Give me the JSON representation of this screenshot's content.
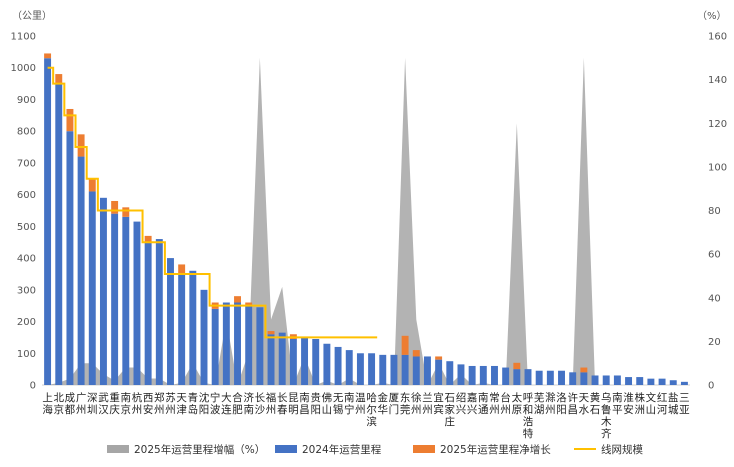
{
  "chart_data": {
    "type": "bar",
    "left_axis_unit": "（公里）",
    "right_axis_unit": "（%）",
    "ylim": [
      0,
      1100
    ],
    "y2lim": [
      0,
      160
    ],
    "yticks": [
      0,
      100,
      200,
      300,
      400,
      500,
      600,
      700,
      800,
      900,
      1000,
      1100
    ],
    "y2ticks": [
      0,
      20,
      40,
      60,
      80,
      100,
      120,
      140,
      160
    ],
    "grid": false,
    "legend_position": "bottom",
    "categories": [
      "上海",
      "北京",
      "成都",
      "广州",
      "深圳",
      "武汉",
      "重庆",
      "南京",
      "杭州",
      "西安",
      "郑州",
      "苏州",
      "天津",
      "青岛",
      "沈阳",
      "宁波",
      "大连",
      "合肥",
      "济南",
      "长沙",
      "福州",
      "长春",
      "昆明",
      "南昌",
      "贵阳",
      "佛山",
      "无锡",
      "南宁",
      "温州",
      "哈尔滨",
      "金华",
      "厦门",
      "东莞",
      "徐州",
      "兰州",
      "宜宾",
      "石家庄",
      "绍兴",
      "嘉兴",
      "南通",
      "常州",
      "台州",
      "太原",
      "呼和浩特",
      "芜湖",
      "滁州",
      "洛阳",
      "许昌",
      "天水",
      "黄石",
      "乌鲁木齐",
      "南平",
      "淮安",
      "株洲",
      "文山",
      "红河",
      "盐城",
      "三亚"
    ],
    "series": [
      {
        "name": "2025年运营里程增幅（%）",
        "kind": "area",
        "axis": "right",
        "color": "#a6a6a6",
        "values": [
          0,
          1,
          3,
          10,
          10,
          5,
          2,
          8,
          8,
          3,
          3,
          0,
          1,
          10,
          1,
          0,
          30,
          0,
          15,
          150,
          30,
          45,
          0,
          13,
          0,
          2,
          0,
          3,
          0,
          0,
          1,
          0,
          150,
          30,
          0,
          10,
          0,
          5,
          0,
          1,
          0,
          0,
          120,
          0,
          0,
          0,
          0,
          0,
          150,
          0,
          0,
          0,
          0,
          0,
          0,
          0,
          0,
          0
        ]
      },
      {
        "name": "2024年运营里程",
        "kind": "bar",
        "axis": "left",
        "color": "#4472c4",
        "values": [
          1030,
          950,
          800,
          720,
          610,
          590,
          540,
          530,
          515,
          450,
          460,
          400,
          350,
          360,
          300,
          240,
          260,
          260,
          250,
          245,
          160,
          165,
          145,
          150,
          145,
          130,
          120,
          110,
          100,
          100,
          95,
          95,
          95,
          90,
          90,
          80,
          75,
          65,
          60,
          60,
          60,
          55,
          50,
          50,
          45,
          45,
          45,
          40,
          40,
          30,
          30,
          30,
          25,
          25,
          20,
          20,
          15,
          10
        ]
      },
      {
        "name": "2025年运营里程净增长",
        "kind": "bar",
        "axis": "left",
        "color": "#ed7d31",
        "values": [
          15,
          30,
          70,
          70,
          40,
          0,
          40,
          30,
          0,
          20,
          0,
          0,
          30,
          0,
          0,
          20,
          0,
          20,
          10,
          0,
          10,
          0,
          15,
          0,
          0,
          0,
          0,
          0,
          0,
          0,
          0,
          0,
          60,
          20,
          0,
          10,
          0,
          0,
          0,
          0,
          0,
          0,
          20,
          0,
          0,
          0,
          0,
          0,
          15,
          0,
          0,
          0,
          0,
          0,
          0,
          0,
          0,
          0
        ]
      },
      {
        "name": "线网规模",
        "kind": "step",
        "axis": "left",
        "color": "#ffc000",
        "values": [
          1000,
          950,
          850,
          750,
          650,
          550,
          550,
          550,
          550,
          450,
          450,
          350,
          350,
          350,
          350,
          250,
          250,
          250,
          250,
          250,
          150,
          150,
          150,
          150,
          150,
          150,
          150,
          150,
          150,
          150,
          null,
          null,
          null,
          null,
          null,
          null,
          null,
          null,
          null,
          null,
          null,
          null,
          null,
          null,
          null,
          null,
          null,
          null,
          null,
          null,
          null,
          null,
          null,
          null,
          null,
          null,
          null,
          null
        ]
      }
    ]
  },
  "legend": {
    "items": [
      {
        "label": "2025年运营里程增幅（%）",
        "color": "#a6a6a6",
        "swatch": "box"
      },
      {
        "label": "2024年运营里程",
        "color": "#4472c4",
        "swatch": "box"
      },
      {
        "label": "2025年运营里程净增长",
        "color": "#ed7d31",
        "swatch": "box"
      },
      {
        "label": "线网规模",
        "color": "#ffc000",
        "swatch": "line"
      }
    ]
  }
}
